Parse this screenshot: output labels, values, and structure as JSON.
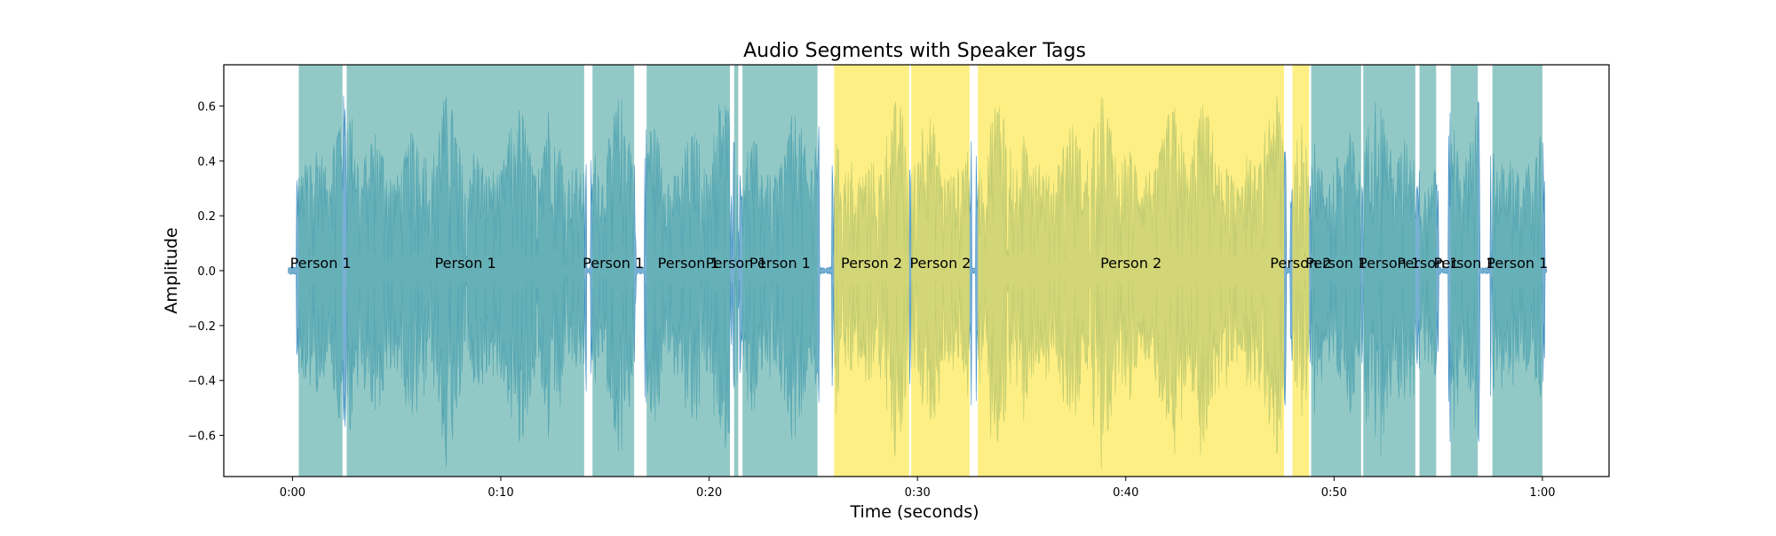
{
  "chart_data": {
    "type": "area",
    "title": "Audio Segments with Speaker Tags",
    "xlabel": "Time (seconds)",
    "ylabel": "Amplitude",
    "xlim": [
      -3.3,
      63.2
    ],
    "ylim": [
      -0.75,
      0.75
    ],
    "x_ticks": [
      {
        "value": 0,
        "label": "0:00"
      },
      {
        "value": 10,
        "label": "0:10"
      },
      {
        "value": 20,
        "label": "0:20"
      },
      {
        "value": 30,
        "label": "0:30"
      },
      {
        "value": 40,
        "label": "0:40"
      },
      {
        "value": 50,
        "label": "0:50"
      },
      {
        "value": 60,
        "label": "1:00"
      }
    ],
    "y_ticks": [
      {
        "value": 0.6,
        "label": "0.6"
      },
      {
        "value": 0.4,
        "label": "0.4"
      },
      {
        "value": 0.2,
        "label": "0.2"
      },
      {
        "value": 0.0,
        "label": "0.0"
      },
      {
        "value": -0.2,
        "label": "−0.2"
      },
      {
        "value": -0.4,
        "label": "−0.4"
      },
      {
        "value": -0.6,
        "label": "−0.6"
      }
    ],
    "grid": false,
    "speaker_colors": {
      "Person 1": "#5fafab",
      "Person 2": "#fde84a"
    },
    "waveform_color": "#3f8fc0",
    "waveform_extent": [
      -0.2,
      60.2
    ],
    "segments": [
      {
        "speaker": "Person 1",
        "start": 0.3,
        "end": 2.4,
        "label": "Person 1"
      },
      {
        "speaker": "Person 1",
        "start": 2.6,
        "end": 14.0,
        "label": "Person 1"
      },
      {
        "speaker": "Person 1",
        "start": 14.4,
        "end": 16.4,
        "label": "Person 1"
      },
      {
        "speaker": "Person 1",
        "start": 17.0,
        "end": 21.0,
        "label": "Person 1"
      },
      {
        "speaker": "Person 1",
        "start": 21.2,
        "end": 21.4,
        "label": "Person 1"
      },
      {
        "speaker": "Person 1",
        "start": 21.6,
        "end": 25.2,
        "label": "Person 1"
      },
      {
        "speaker": "Person 2",
        "start": 26.0,
        "end": 29.6,
        "label": "Person 2"
      },
      {
        "speaker": "Person 2",
        "start": 29.7,
        "end": 32.5,
        "label": "Person 2"
      },
      {
        "speaker": "Person 2",
        "start": 32.9,
        "end": 47.6,
        "label": "Person 2"
      },
      {
        "speaker": "Person 2",
        "start": 48.0,
        "end": 48.8,
        "label": "Person 2"
      },
      {
        "speaker": "Person 1",
        "start": 48.9,
        "end": 51.3,
        "label": "Person 1"
      },
      {
        "speaker": "Person 1",
        "start": 51.4,
        "end": 53.9,
        "label": "Person 1"
      },
      {
        "speaker": "Person 1",
        "start": 54.1,
        "end": 54.9,
        "label": "Person 1"
      },
      {
        "speaker": "Person 1",
        "start": 55.6,
        "end": 56.9,
        "label": "Person 1"
      },
      {
        "speaker": "Person 1",
        "start": 57.6,
        "end": 60.0,
        "label": "Person 1"
      }
    ]
  }
}
